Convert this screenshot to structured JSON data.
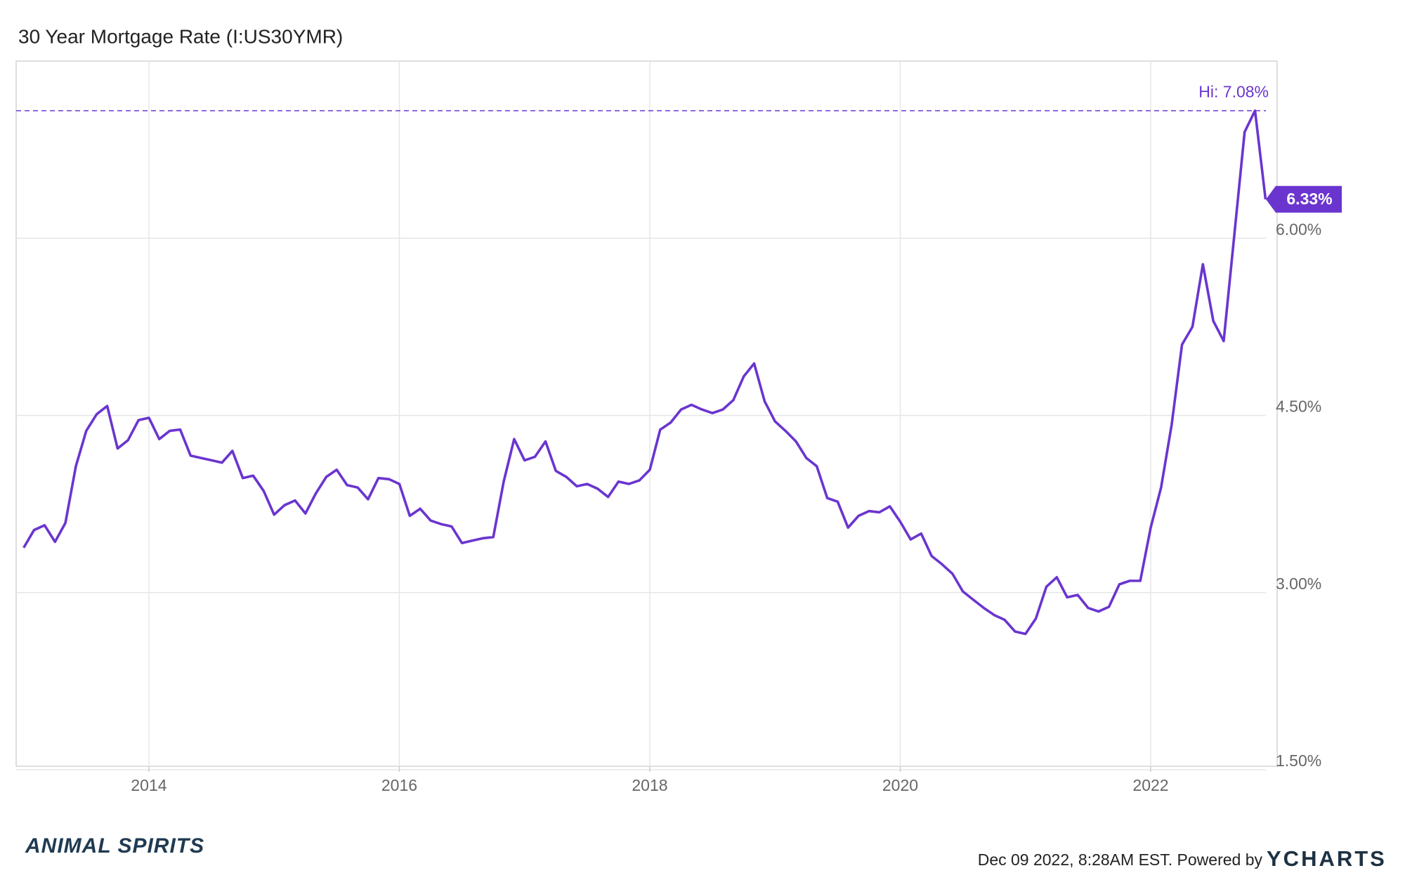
{
  "chart_data": {
    "type": "line",
    "title": "30 Year Mortgage Rate (I:US30YMR)",
    "x": [
      2013,
      2013.083,
      2013.167,
      2013.25,
      2013.333,
      2013.417,
      2013.5,
      2013.583,
      2013.667,
      2013.75,
      2013.833,
      2013.917,
      2014,
      2014.083,
      2014.167,
      2014.25,
      2014.333,
      2014.417,
      2014.5,
      2014.583,
      2014.667,
      2014.75,
      2014.833,
      2014.917,
      2015,
      2015.083,
      2015.167,
      2015.25,
      2015.333,
      2015.417,
      2015.5,
      2015.583,
      2015.667,
      2015.75,
      2015.833,
      2015.917,
      2016,
      2016.083,
      2016.167,
      2016.25,
      2016.333,
      2016.417,
      2016.5,
      2016.583,
      2016.667,
      2016.75,
      2016.833,
      2016.917,
      2017,
      2017.083,
      2017.167,
      2017.25,
      2017.333,
      2017.417,
      2017.5,
      2017.583,
      2017.667,
      2017.75,
      2017.833,
      2017.917,
      2018,
      2018.083,
      2018.167,
      2018.25,
      2018.333,
      2018.417,
      2018.5,
      2018.583,
      2018.667,
      2018.75,
      2018.833,
      2018.917,
      2019,
      2019.083,
      2019.167,
      2019.25,
      2019.333,
      2019.417,
      2019.5,
      2019.583,
      2019.667,
      2019.75,
      2019.833,
      2019.917,
      2020,
      2020.083,
      2020.167,
      2020.25,
      2020.333,
      2020.417,
      2020.5,
      2020.583,
      2020.667,
      2020.75,
      2020.833,
      2020.917,
      2021,
      2021.083,
      2021.167,
      2021.25,
      2021.333,
      2021.417,
      2021.5,
      2021.583,
      2021.667,
      2021.75,
      2021.833,
      2021.917,
      2022,
      2022.083,
      2022.167,
      2022.25,
      2022.333,
      2022.417,
      2022.5,
      2022.583,
      2022.667,
      2022.75,
      2022.833,
      2022.917
    ],
    "values": [
      3.38,
      3.53,
      3.57,
      3.43,
      3.59,
      4.07,
      4.37,
      4.51,
      4.58,
      4.22,
      4.29,
      4.46,
      4.48,
      4.3,
      4.37,
      4.38,
      4.16,
      4.14,
      4.12,
      4.1,
      4.2,
      3.97,
      3.99,
      3.86,
      3.66,
      3.74,
      3.78,
      3.67,
      3.84,
      3.98,
      4.04,
      3.91,
      3.89,
      3.79,
      3.97,
      3.96,
      3.92,
      3.65,
      3.71,
      3.61,
      3.58,
      3.56,
      3.42,
      3.44,
      3.46,
      3.47,
      3.94,
      4.3,
      4.12,
      4.15,
      4.28,
      4.03,
      3.98,
      3.9,
      3.92,
      3.88,
      3.81,
      3.94,
      3.92,
      3.95,
      4.04,
      4.38,
      4.44,
      4.55,
      4.59,
      4.55,
      4.52,
      4.55,
      4.63,
      4.83,
      4.94,
      4.62,
      4.45,
      4.37,
      4.28,
      4.14,
      4.07,
      3.8,
      3.77,
      3.55,
      3.65,
      3.69,
      3.68,
      3.73,
      3.6,
      3.45,
      3.5,
      3.31,
      3.24,
      3.16,
      3.01,
      2.94,
      2.87,
      2.81,
      2.77,
      2.67,
      2.65,
      2.78,
      3.05,
      3.13,
      2.96,
      2.98,
      2.87,
      2.84,
      2.88,
      3.07,
      3.1,
      3.1,
      3.55,
      3.89,
      4.42,
      5.1,
      5.25,
      5.78,
      5.3,
      5.13,
      6.02,
      6.9,
      7.08,
      6.33
    ],
    "color": "#6a35cf",
    "xlim": [
      2012.94,
      2022.92
    ],
    "xticks": [
      2014,
      2016,
      2018,
      2020,
      2022
    ],
    "ylim": [
      1.53,
      7.5
    ],
    "yticks": [
      {
        "value": 1.5,
        "label": "1.50%"
      },
      {
        "value": 3,
        "label": "3.00%"
      },
      {
        "value": 4.5,
        "label": "4.50%"
      },
      {
        "value": 6,
        "label": "6.00%"
      }
    ],
    "grid": true,
    "max_line": {
      "value": 7.08,
      "label": "Hi: 7.08%"
    },
    "last_value": {
      "value": 6.33,
      "label": "6.33%"
    },
    "footer": "Dec 09 2022, 8:28AM EST. Powered by",
    "brand": "YCHARTS",
    "logo": "ANIMAL SPIRITS"
  }
}
